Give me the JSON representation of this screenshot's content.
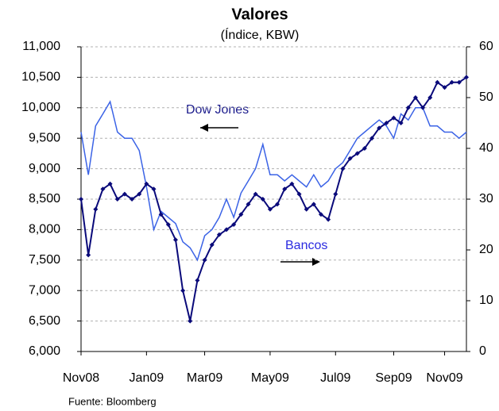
{
  "chart_data": {
    "type": "line",
    "title": "Valores",
    "subtitle": "(Índice, KBW)",
    "source": "Fuente: Bloomberg",
    "categories": [
      "Nov08",
      null,
      null,
      null,
      null,
      null,
      null,
      null,
      null,
      "Jan09",
      null,
      null,
      null,
      null,
      null,
      null,
      null,
      "Mar09",
      null,
      null,
      null,
      null,
      null,
      null,
      null,
      null,
      "May09",
      null,
      null,
      null,
      null,
      null,
      null,
      null,
      null,
      "Jul09",
      null,
      null,
      null,
      null,
      null,
      null,
      null,
      "Sep09",
      null,
      null,
      null,
      null,
      null,
      null,
      "Nov09",
      null,
      null,
      null
    ],
    "series": [
      {
        "name": "Dow Jones",
        "color": "#3b63e6",
        "axis": "y",
        "values": [
          9600,
          8900,
          9700,
          9900,
          10100,
          9600,
          9500,
          9500,
          9300,
          8700,
          8000,
          8300,
          8200,
          8100,
          7800,
          7700,
          7500,
          7900,
          8000,
          8200,
          8500,
          8200,
          8600,
          8800,
          9000,
          9400,
          8900,
          8900,
          8800,
          8900,
          8800,
          8700,
          8900,
          8700,
          8800,
          9000,
          9100,
          9300,
          9500,
          9600,
          9700,
          9800,
          9700,
          9500,
          9900,
          9800,
          10000,
          10000,
          9700,
          9700,
          9600,
          9600,
          9500,
          9600
        ]
      },
      {
        "name": "Bancos",
        "color": "#0a0a7a",
        "axis": "y2",
        "values": [
          30,
          19,
          28,
          32,
          33,
          30,
          31,
          30,
          31,
          33,
          32,
          27,
          25,
          22,
          12,
          6,
          14,
          18,
          21,
          23,
          24,
          25,
          27,
          29,
          31,
          30,
          28,
          29,
          32,
          33,
          31,
          28,
          29,
          27,
          26,
          31,
          36,
          38,
          39,
          40,
          42,
          44,
          45,
          46,
          45,
          48,
          50,
          48,
          50,
          53,
          52,
          53,
          53,
          54
        ]
      }
    ],
    "ylim": [
      6000,
      11000
    ],
    "yticks": [
      {
        "value": 6000,
        "label": "6,000"
      },
      {
        "value": 6500,
        "label": "6,500"
      },
      {
        "value": 7000,
        "label": "7,000"
      },
      {
        "value": 7500,
        "label": "7,500"
      },
      {
        "value": 8000,
        "label": "8,000"
      },
      {
        "value": 8500,
        "label": "8,500"
      },
      {
        "value": 9000,
        "label": "9,000"
      },
      {
        "value": 9500,
        "label": "9,500"
      },
      {
        "value": 10000,
        "label": "10,000"
      },
      {
        "value": 10500,
        "label": "10,500"
      },
      {
        "value": 11000,
        "label": "11,000"
      }
    ],
    "y2lim": [
      0,
      60
    ],
    "y2ticks": [
      0,
      10,
      20,
      30,
      40,
      50,
      60
    ],
    "grid": true
  }
}
